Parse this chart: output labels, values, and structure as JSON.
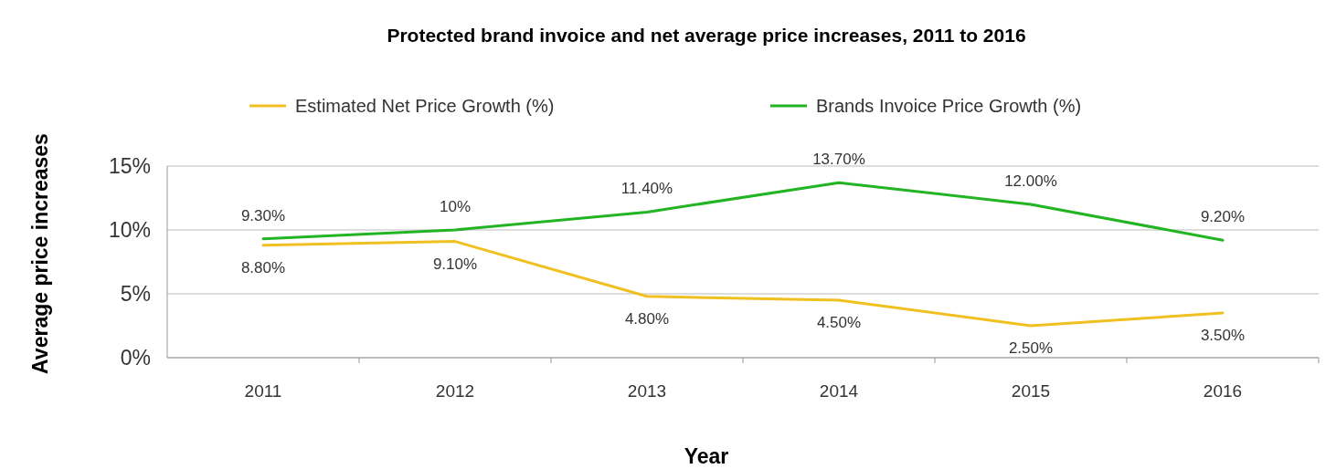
{
  "chart_data": {
    "type": "line",
    "title": "Protected brand invoice and net average price increases, 2011 to 2016",
    "xlabel": "Year",
    "ylabel": "Average price increases",
    "categories": [
      "2011",
      "2012",
      "2013",
      "2014",
      "2015",
      "2016"
    ],
    "series": [
      {
        "name": "Estimated Net Price Growth (%)",
        "color": "#f0c020",
        "values": [
          8.8,
          9.1,
          4.8,
          4.5,
          2.5,
          3.5
        ],
        "value_labels": [
          "8.80%",
          "9.10%",
          "4.80%",
          "4.50%",
          "2.50%",
          "3.50%"
        ]
      },
      {
        "name": "Brands Invoice Price Growth (%)",
        "color": "#22b422",
        "values": [
          9.3,
          10,
          11.4,
          13.7,
          12.0,
          9.2
        ],
        "value_labels": [
          "9.30%",
          "10%",
          "11.40%",
          "13.70%",
          "12.00%",
          "9.20%"
        ]
      }
    ],
    "ylim": [
      0,
      15
    ],
    "yticks": [
      {
        "value": 0,
        "label": "0%"
      },
      {
        "value": 5,
        "label": "5%"
      },
      {
        "value": 10,
        "label": "10%"
      },
      {
        "value": 15,
        "label": "15%"
      }
    ],
    "grid": "y",
    "legend": "top",
    "line_style": "solid",
    "marker": "none"
  }
}
